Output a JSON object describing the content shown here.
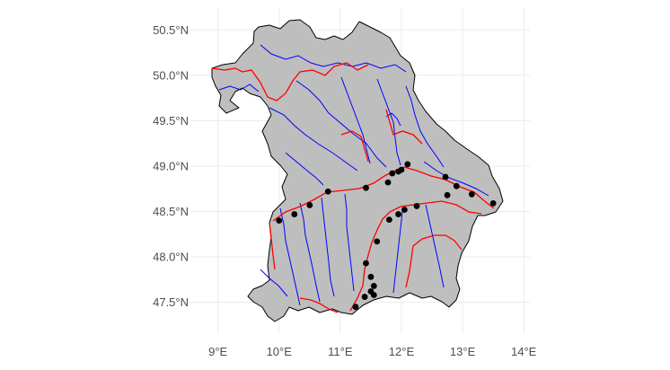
{
  "axes": {
    "x_ticks": [
      {
        "value": 9,
        "label": "9°E"
      },
      {
        "value": 10,
        "label": "10°E"
      },
      {
        "value": 11,
        "label": "11°E"
      },
      {
        "value": 12,
        "label": "12°E"
      },
      {
        "value": 13,
        "label": "13°E"
      },
      {
        "value": 14,
        "label": "14°E"
      }
    ],
    "y_ticks": [
      {
        "value": 47.5,
        "label": "47.5°N"
      },
      {
        "value": 48.0,
        "label": "48.0°N"
      },
      {
        "value": 48.5,
        "label": "48.5°N"
      },
      {
        "value": 49.0,
        "label": "49.0°N"
      },
      {
        "value": 49.5,
        "label": "49.5°N"
      },
      {
        "value": 50.0,
        "label": "50.0°N"
      },
      {
        "value": 50.5,
        "label": "50.5°N"
      }
    ],
    "x_range": [
      8.55,
      14.1
    ],
    "y_range": [
      47.15,
      50.75
    ],
    "grid": true
  },
  "colors": {
    "background": "#ffffff",
    "grid": "#ebebeb",
    "region_fill": "#bebebe",
    "region_border": "#000000",
    "rivers": "#0000ff",
    "main_rivers": "#ff0000",
    "stations": "#000000"
  },
  "stations": [
    [
      10.0,
      48.4
    ],
    [
      10.25,
      48.47
    ],
    [
      10.5,
      48.57
    ],
    [
      10.8,
      48.72
    ],
    [
      11.42,
      48.76
    ],
    [
      11.78,
      48.82
    ],
    [
      11.85,
      48.92
    ],
    [
      11.95,
      48.94
    ],
    [
      12.0,
      48.96
    ],
    [
      12.1,
      49.02
    ],
    [
      12.72,
      48.88
    ],
    [
      12.9,
      48.78
    ],
    [
      12.75,
      48.68
    ],
    [
      13.15,
      48.69
    ],
    [
      13.5,
      48.59
    ],
    [
      12.25,
      48.56
    ],
    [
      12.05,
      48.52
    ],
    [
      11.95,
      48.47
    ],
    [
      11.8,
      48.41
    ],
    [
      11.6,
      48.17
    ],
    [
      11.42,
      47.93
    ],
    [
      11.5,
      47.78
    ],
    [
      11.55,
      47.68
    ],
    [
      11.5,
      47.62
    ],
    [
      11.4,
      47.56
    ],
    [
      11.55,
      47.58
    ],
    [
      11.25,
      47.45
    ]
  ]
}
